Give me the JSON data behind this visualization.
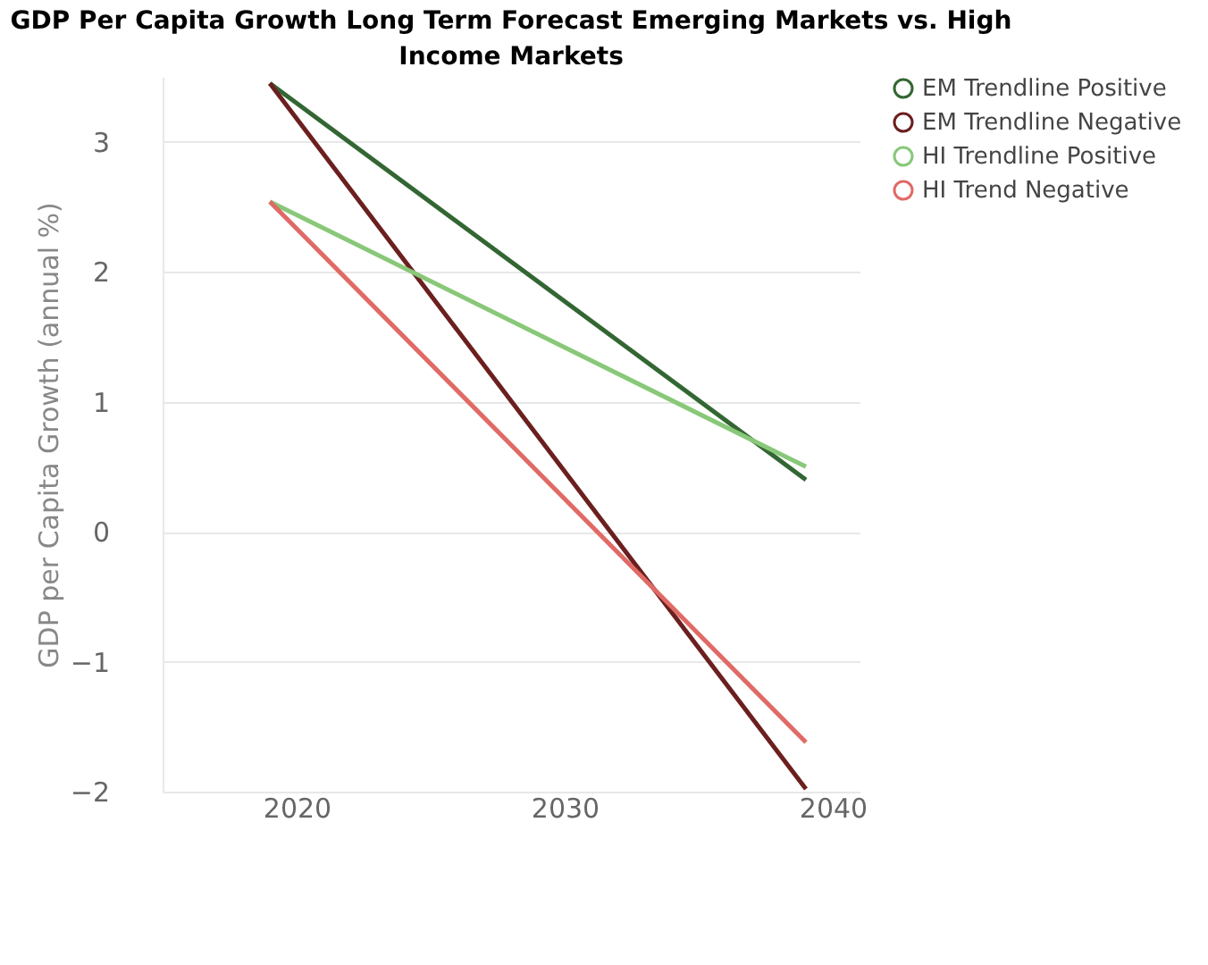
{
  "chart_data": {
    "type": "line",
    "title": "GDP Per Capita Growth Long Term Forecast Emerging Markets vs. High Income Markets",
    "ylabel": "GDP per Capita Growth (annual %)",
    "x": [
      2019,
      2039
    ],
    "series": [
      {
        "name": "EM Trendline Positive",
        "color": "#336633",
        "values": [
          3.45,
          0.4
        ]
      },
      {
        "name": "EM Trendline Negative",
        "color": "#6b1f1f",
        "values": [
          3.45,
          -1.98
        ]
      },
      {
        "name": "HI Trendline Positive",
        "color": "#88c878",
        "values": [
          2.54,
          0.5
        ]
      },
      {
        "name": "HI Trend Negative",
        "color": "#e06a66",
        "values": [
          2.54,
          -1.62
        ]
      }
    ],
    "xlim": [
      2015,
      2041
    ],
    "xticks": [
      2020,
      2030,
      2040
    ],
    "ylim": [
      -2,
      3.5
    ],
    "yticks": [
      -2,
      -1,
      0,
      1,
      2,
      3
    ],
    "grid": "y",
    "legend": "right",
    "marker": "none",
    "line_style": "solid"
  }
}
